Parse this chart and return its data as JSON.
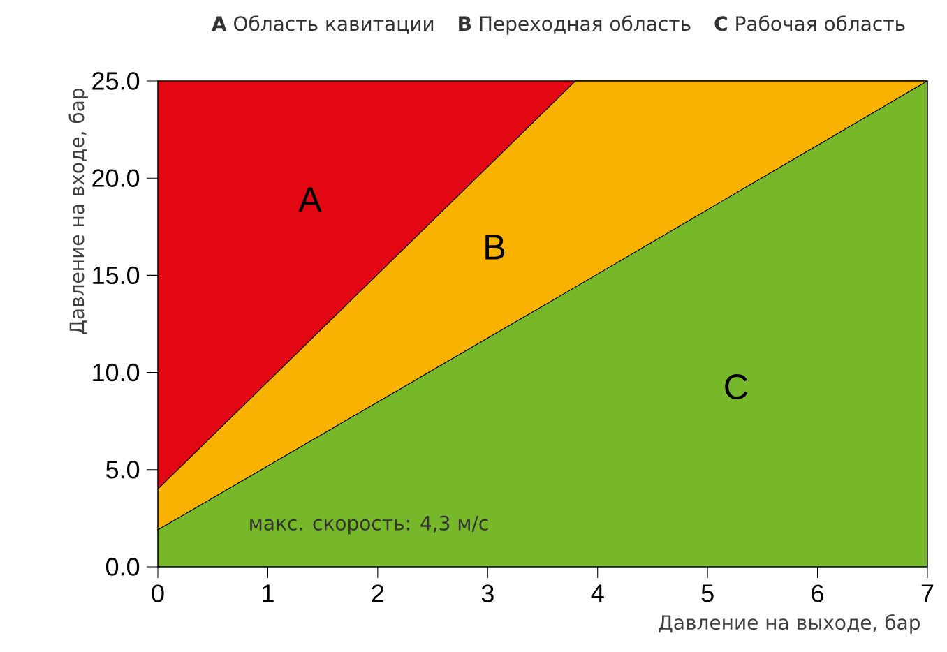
{
  "chart_data": {
    "type": "area",
    "stacked": true,
    "xlabel": "Давление на выходе, бар",
    "ylabel": "Давление на входе, бар",
    "x": [
      0,
      3.8,
      7
    ],
    "series": [
      {
        "color": "#76b82a",
        "values": [
          1.9,
          14.4,
          25
        ]
      },
      {
        "color": "#f9b200",
        "values": [
          2.1,
          10.6,
          0
        ]
      },
      {
        "color": "#e30613",
        "values": [
          21,
          0,
          0
        ]
      }
    ],
    "xlim": [
      0,
      7
    ],
    "xticks": [
      0,
      1,
      2,
      3,
      4,
      5,
      6,
      7
    ],
    "ylim": [
      0,
      25
    ],
    "yticks": [
      {
        "value": 0,
        "label": "0.0"
      },
      {
        "value": 5,
        "label": "5.0"
      },
      {
        "value": 10,
        "label": "10.0"
      },
      {
        "value": 15,
        "label": "15.0"
      },
      {
        "value": 20,
        "label": "20.0"
      },
      {
        "value": 25,
        "label": "25.0"
      }
    ],
    "annotations": [
      "**A**  Область кавитации",
      "**B**  Переходная область",
      "**C**  Рабочая область",
      "A",
      "B",
      "C",
      "макс. скорость: 4,3 м/с"
    ]
  }
}
